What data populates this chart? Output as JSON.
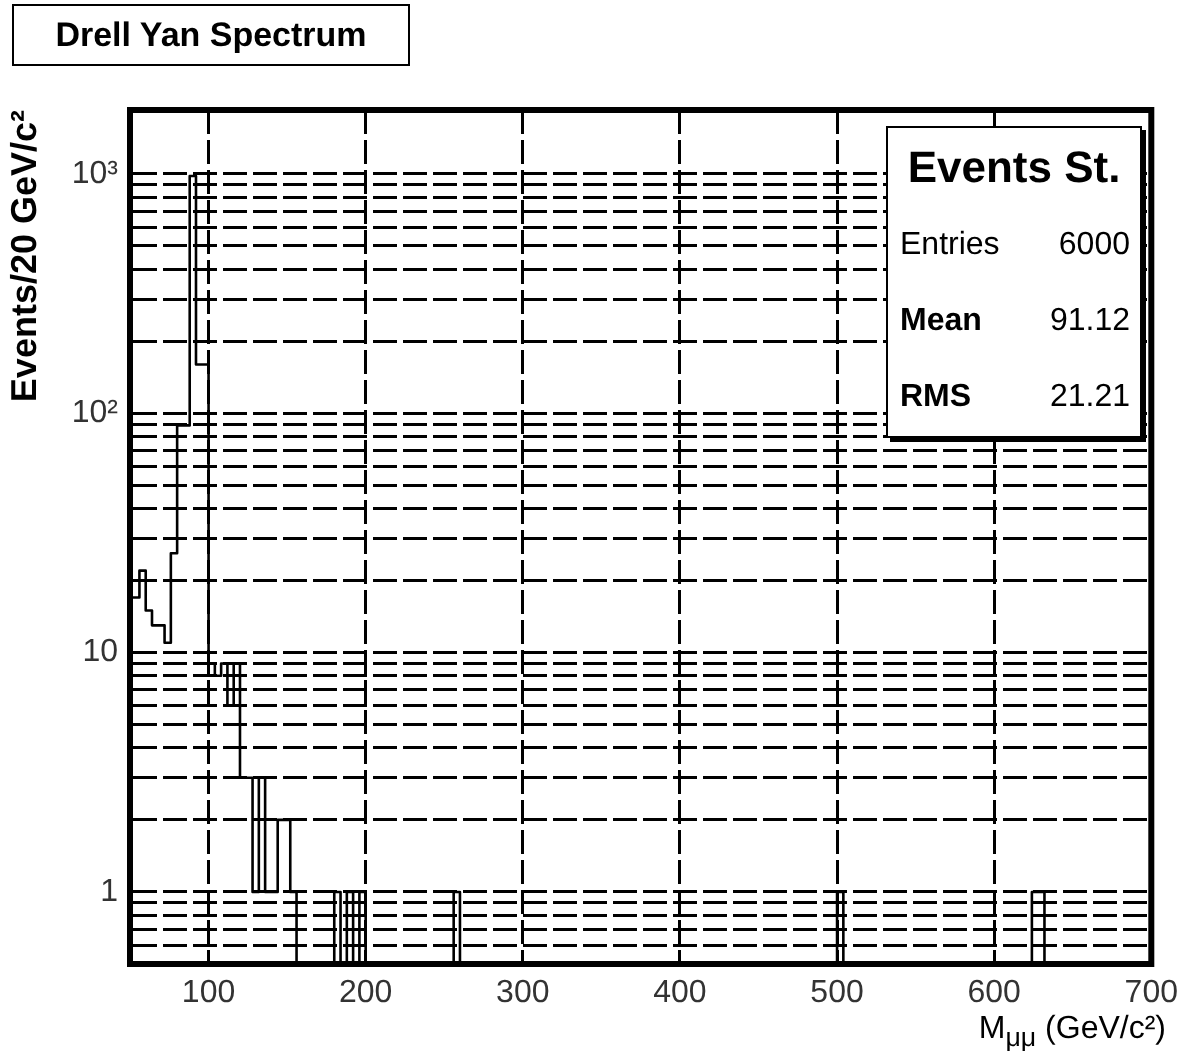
{
  "chart_data": {
    "type": "histogram",
    "title": "Drell Yan Spectrum",
    "xlabel": "M$_{μμ}$ (GeV/c²)",
    "ylabel": "Events/20 GeV/c²",
    "annotations": [
      "Events St.",
      "Entries",
      "6000",
      "Mean",
      "91.12",
      "RMS",
      "21.21"
    ],
    "bins": [
      50,
      52,
      56,
      60,
      64,
      68,
      72,
      76,
      80,
      84,
      88,
      92,
      96,
      100,
      104,
      108,
      112,
      116,
      120,
      124,
      128,
      132,
      136,
      140,
      144,
      148,
      152,
      156,
      160,
      164,
      168,
      172,
      176,
      180,
      184,
      188,
      192,
      196,
      200,
      204,
      208,
      212,
      216,
      220,
      224,
      228,
      232,
      236,
      240,
      244,
      248,
      252,
      256,
      260,
      264,
      268,
      272,
      276,
      280,
      284,
      288,
      292,
      296,
      300,
      304,
      308,
      312,
      316,
      320,
      324,
      328,
      332,
      336,
      340,
      344,
      348,
      352,
      356,
      360,
      364,
      368,
      372,
      376,
      380,
      384,
      388,
      392,
      396,
      400,
      404,
      408,
      412,
      416,
      420,
      424,
      428,
      432,
      436,
      440,
      444,
      448,
      452,
      456,
      460,
      464,
      468,
      472,
      476,
      480,
      484,
      488,
      492,
      496,
      500,
      504,
      508,
      512,
      516,
      520,
      524,
      528,
      532,
      536,
      540,
      544,
      548,
      552,
      556,
      560,
      564,
      568,
      572,
      576,
      580,
      584,
      588,
      592,
      596,
      600,
      604,
      608,
      612,
      616,
      620,
      624,
      628,
      632,
      636,
      640,
      644,
      648,
      652,
      656,
      660,
      664,
      668,
      672,
      676,
      680,
      684,
      688,
      692,
      696,
      700
    ],
    "values": [
      17,
      17,
      22,
      15,
      13,
      13,
      11,
      26,
      89,
      89,
      980,
      160,
      160,
      9,
      8,
      9,
      6,
      9,
      3,
      3,
      1,
      3,
      1,
      1,
      2,
      2,
      1,
      null,
      null,
      null,
      null,
      null,
      null,
      1,
      null,
      1,
      null,
      1,
      null,
      null,
      null,
      null,
      null,
      null,
      null,
      null,
      null,
      null,
      null,
      null,
      null,
      null,
      1,
      null,
      null,
      null,
      null,
      null,
      null,
      null,
      null,
      null,
      null,
      null,
      null,
      null,
      null,
      null,
      null,
      null,
      null,
      null,
      null,
      null,
      null,
      null,
      null,
      null,
      null,
      null,
      null,
      null,
      null,
      null,
      null,
      null,
      null,
      null,
      null,
      null,
      null,
      null,
      null,
      null,
      null,
      null,
      null,
      null,
      null,
      null,
      null,
      null,
      null,
      null,
      null,
      null,
      null,
      null,
      null,
      null,
      null,
      null,
      null,
      1,
      null,
      null,
      null,
      null,
      null,
      null,
      null,
      null,
      null,
      null,
      null,
      null,
      null,
      null,
      null,
      null,
      null,
      null,
      null,
      null,
      null,
      null,
      null,
      null,
      null,
      null,
      null,
      null,
      null,
      null,
      1,
      1,
      null,
      null,
      null,
      null,
      null,
      null,
      null,
      null,
      null,
      null,
      null,
      null,
      null,
      null,
      null,
      null,
      null
    ],
    "color": "#000000",
    "xlim": [
      50,
      700
    ],
    "xticks": [
      100,
      200,
      300,
      400,
      500,
      600,
      700
    ],
    "ylim": [
      0.5,
      1850
    ],
    "yticks": [
      {
        "value": 0.6,
        "label": null
      },
      {
        "value": 0.7,
        "label": null
      },
      {
        "value": 0.8,
        "label": null
      },
      {
        "value": 0.9,
        "label": null
      },
      1,
      {
        "value": 2,
        "label": null
      },
      {
        "value": 3,
        "label": null
      },
      {
        "value": 4,
        "label": null
      },
      {
        "value": 5,
        "label": null
      },
      {
        "value": 6,
        "label": null
      },
      {
        "value": 7,
        "label": null
      },
      {
        "value": 8,
        "label": null
      },
      {
        "value": 9,
        "label": null
      },
      10,
      {
        "value": 20,
        "label": null
      },
      {
        "value": 30,
        "label": null
      },
      {
        "value": 40,
        "label": null
      },
      {
        "value": 50,
        "label": null
      },
      {
        "value": 60,
        "label": null
      },
      {
        "value": 70,
        "label": null
      },
      {
        "value": 80,
        "label": null
      },
      {
        "value": 90,
        "label": null
      },
      {
        "value": 100,
        "label": "10²"
      },
      {
        "value": 200,
        "label": null
      },
      {
        "value": 300,
        "label": null
      },
      {
        "value": 400,
        "label": null
      },
      {
        "value": 500,
        "label": null
      },
      {
        "value": 600,
        "label": null
      },
      {
        "value": 700,
        "label": null
      },
      {
        "value": 800,
        "label": null
      },
      {
        "value": 900,
        "label": null
      },
      {
        "value": 1000,
        "label": "10³"
      }
    ],
    "log": "y",
    "grid": true,
    "legend": false,
    "line_style": "solid"
  }
}
